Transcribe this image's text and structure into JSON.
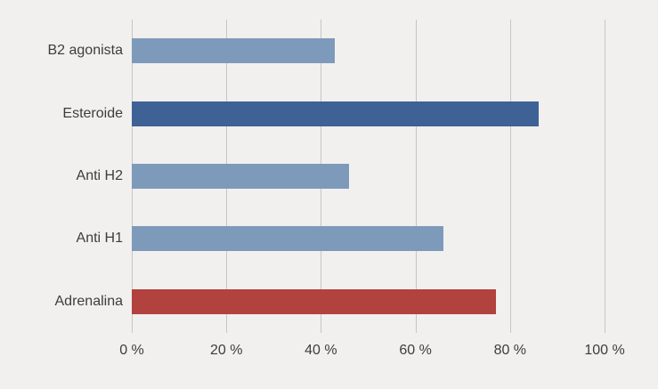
{
  "chart_data": {
    "type": "bar",
    "orientation": "horizontal",
    "title": "",
    "xlabel": "",
    "ylabel": "",
    "categories": [
      "B2 agonista",
      "Esteroide",
      "Anti H2",
      "Anti H1",
      "Adrenalina"
    ],
    "values": [
      43,
      86,
      46,
      66,
      77
    ],
    "bar_colors": [
      "#7e9abb",
      "#3e6295",
      "#7e9abb",
      "#7e9abb",
      "#b2423d"
    ],
    "xlim": [
      0,
      100
    ],
    "xticks": [
      0,
      20,
      40,
      60,
      80,
      100
    ],
    "xtick_suffix": " %",
    "grid": "vertical",
    "legend": "none",
    "background_color": "#f1f0ee",
    "gridline_color": "#c7c6c3",
    "text_color": "#3d3d3d"
  }
}
